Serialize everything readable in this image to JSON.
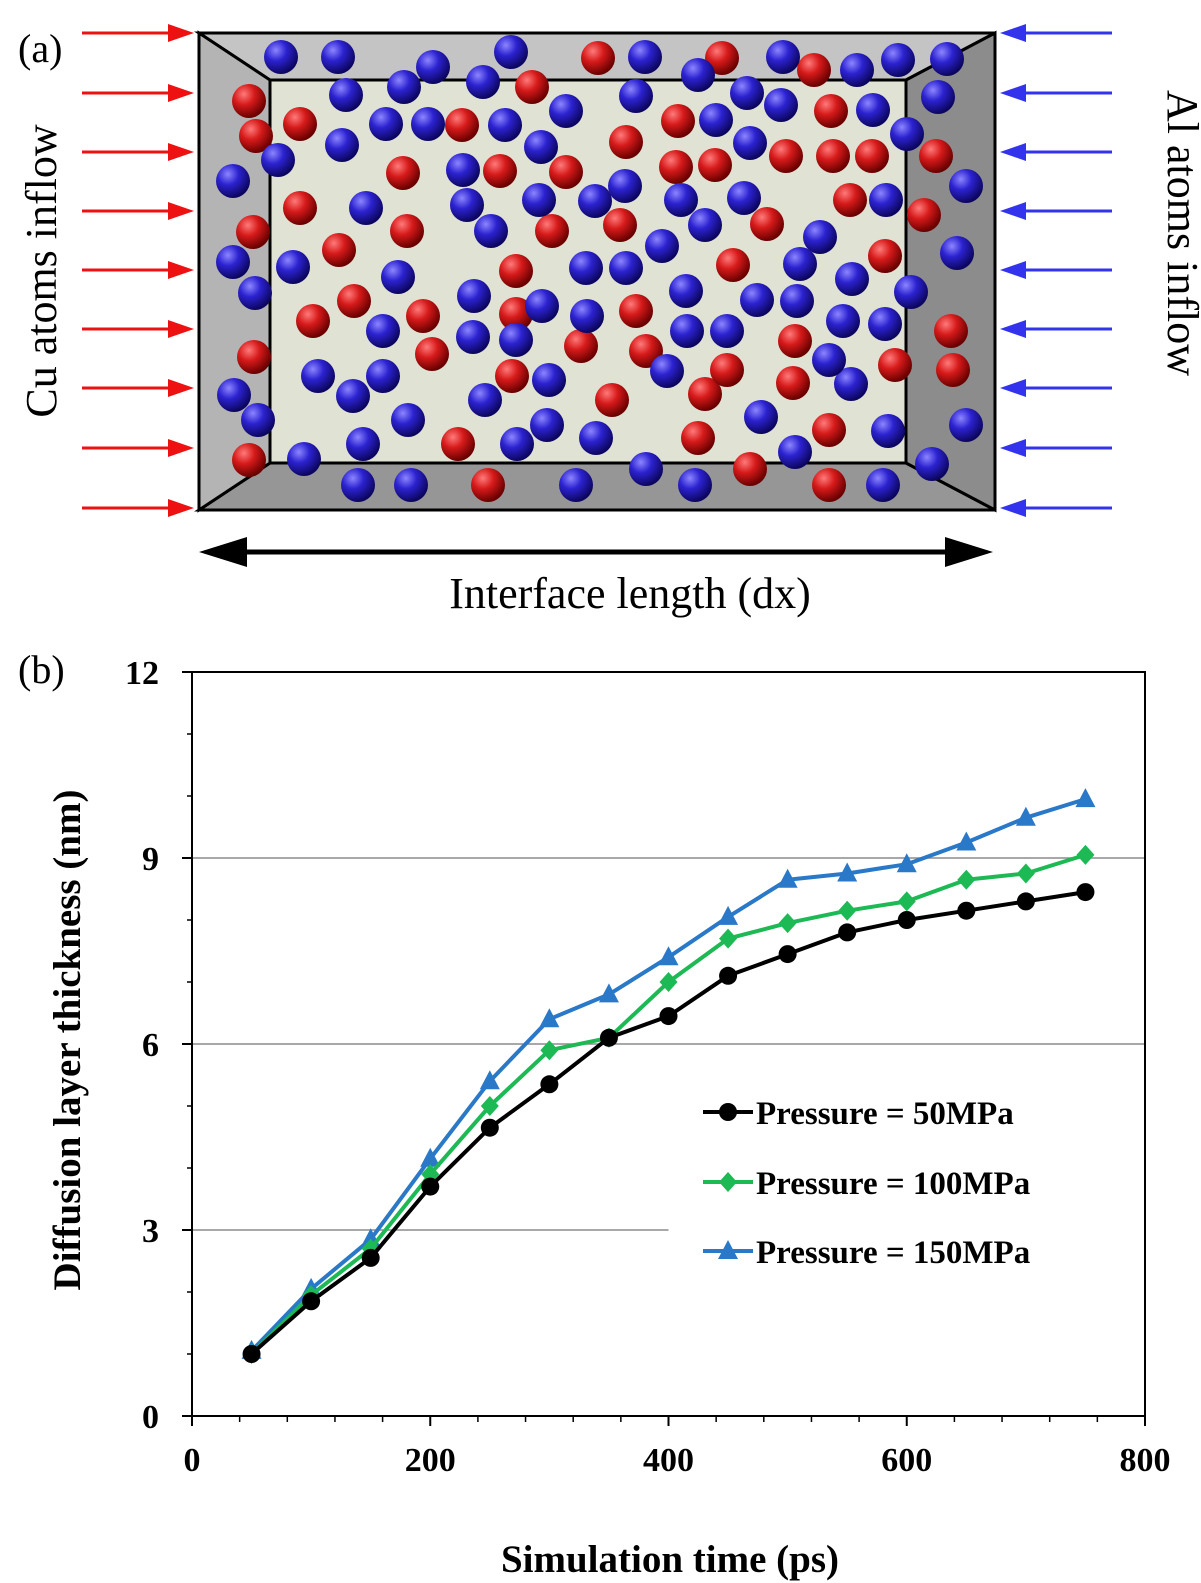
{
  "panel_a": {
    "label": "(a)",
    "left_text": "Cu atoms inflow",
    "right_text": "Al atoms inflow",
    "bottom_text": "Interface length (dx)",
    "colors": {
      "cu_atom": "#cc1111",
      "al_atom": "#2b22cc",
      "cu_arrow": "#ee1111",
      "al_arrow": "#3333ee",
      "box_face": "#e0e3d4",
      "box_frame": "#a6a6a6"
    }
  },
  "panel_b": {
    "label": "(b)"
  },
  "chart_data": {
    "type": "line",
    "title": "",
    "xlabel": "Simulation time (ps)",
    "ylabel": "Diffusion layer thickness (nm)",
    "xlim": [
      0,
      800
    ],
    "ylim": [
      0,
      12
    ],
    "xticks": [
      "0",
      "200",
      "400",
      "600",
      "800"
    ],
    "yticks": [
      "0",
      "3",
      "6",
      "9",
      "12"
    ],
    "grid": "horizontal",
    "legend_position": "center-right",
    "x": [
      50,
      100,
      150,
      200,
      250,
      300,
      350,
      400,
      450,
      500,
      550,
      600,
      650,
      700,
      750
    ],
    "series": [
      {
        "name": "Pressure = 50MPa",
        "color": "#000000",
        "marker": "circle",
        "values": [
          1.0,
          1.85,
          2.55,
          3.7,
          4.65,
          5.35,
          6.1,
          6.45,
          7.1,
          7.45,
          7.8,
          8.0,
          8.15,
          8.3,
          8.45
        ]
      },
      {
        "name": "Pressure = 100MPa",
        "color": "#1db954",
        "marker": "diamond",
        "values": [
          1.0,
          1.95,
          2.7,
          3.9,
          5.0,
          5.9,
          6.1,
          7.0,
          7.7,
          7.95,
          8.15,
          8.3,
          8.65,
          8.75,
          9.05
        ]
      },
      {
        "name": "Pressure = 150MPa",
        "color": "#2a78c8",
        "marker": "triangle",
        "values": [
          1.05,
          2.05,
          2.85,
          4.15,
          5.4,
          6.4,
          6.8,
          7.4,
          8.05,
          8.65,
          8.75,
          8.9,
          9.25,
          9.65,
          9.95
        ]
      }
    ]
  }
}
